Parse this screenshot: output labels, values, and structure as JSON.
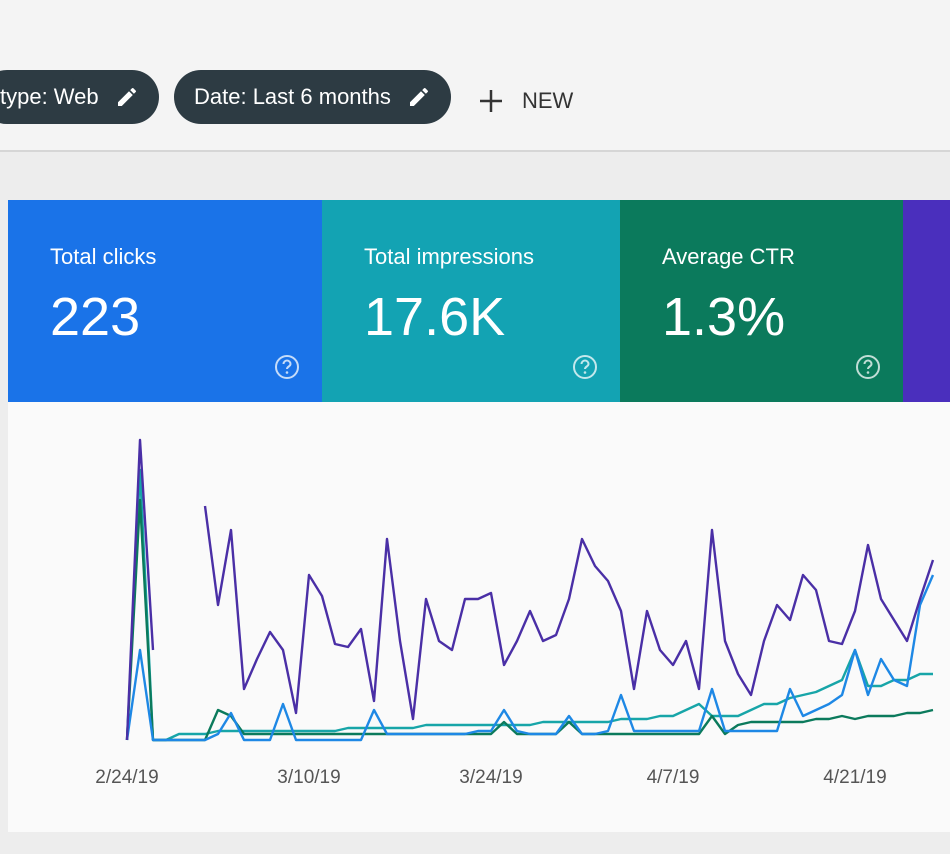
{
  "filters": [
    {
      "label": "type: Web"
    },
    {
      "label": "Date: Last 6 months"
    }
  ],
  "new_button": "NEW",
  "metrics": [
    {
      "label": "Total clicks",
      "value": "223",
      "color": "#1a73e8"
    },
    {
      "label": "Total impressions",
      "value": "17.6K",
      "color": "#13a3b3"
    },
    {
      "label": "Average CTR",
      "value": "1.3%",
      "color": "#0b7a5c"
    }
  ],
  "chart_data": {
    "type": "line",
    "categories": [
      "2/24/19",
      null,
      null,
      null,
      null,
      null,
      null,
      null,
      null,
      null,
      null,
      null,
      null,
      null,
      "3/10/19",
      null,
      null,
      null,
      null,
      null,
      null,
      null,
      null,
      null,
      null,
      null,
      null,
      null,
      "3/24/19",
      null,
      null,
      null,
      null,
      null,
      null,
      null,
      null,
      null,
      null,
      null,
      null,
      null,
      "4/7/19",
      null,
      null,
      null,
      null,
      null,
      null,
      null,
      null,
      null,
      null,
      null,
      null,
      null,
      "4/21/19",
      null,
      null,
      null,
      null,
      null,
      null
    ],
    "ylim": [
      0,
      100
    ],
    "series": [
      {
        "color": "#17a5a8",
        "values": [
          0,
          90,
          0,
          0,
          2,
          2,
          2,
          3,
          3,
          3,
          3,
          3,
          3,
          3,
          3,
          3,
          3,
          4,
          4,
          4,
          4,
          4,
          4,
          5,
          5,
          5,
          5,
          5,
          5,
          5,
          5,
          5,
          6,
          6,
          6,
          6,
          6,
          6,
          7,
          7,
          7,
          8,
          8,
          10,
          12,
          8,
          8,
          8,
          10,
          12,
          12,
          14,
          15,
          16,
          18,
          20,
          30,
          18,
          18,
          20,
          20,
          22,
          22
        ]
      },
      {
        "color": "#0b7a5c",
        "values": [
          0,
          80,
          0,
          0,
          0,
          0,
          0,
          10,
          8,
          2,
          2,
          2,
          2,
          2,
          2,
          2,
          2,
          2,
          2,
          2,
          2,
          2,
          2,
          2,
          2,
          2,
          2,
          2,
          2,
          6,
          2,
          2,
          2,
          2,
          6,
          2,
          2,
          2,
          2,
          2,
          2,
          2,
          2,
          2,
          2,
          8,
          2,
          5,
          6,
          6,
          6,
          6,
          6,
          7,
          7,
          8,
          7,
          8,
          8,
          8,
          9,
          9,
          10
        ]
      },
      {
        "color": "#1e88e5",
        "values": [
          0,
          30,
          0,
          0,
          0,
          0,
          0,
          2,
          9,
          0,
          0,
          0,
          12,
          0,
          0,
          0,
          0,
          0,
          0,
          10,
          2,
          2,
          2,
          2,
          2,
          2,
          2,
          3,
          3,
          10,
          3,
          2,
          2,
          2,
          8,
          2,
          2,
          3,
          15,
          3,
          3,
          3,
          3,
          3,
          3,
          17,
          3,
          3,
          3,
          3,
          3,
          17,
          8,
          10,
          12,
          15,
          30,
          15,
          27,
          20,
          18,
          45,
          55
        ]
      },
      {
        "color": "#4a2fa6",
        "values": [
          0,
          100,
          30,
          null,
          null,
          null,
          78,
          45,
          70,
          17,
          27,
          36,
          30,
          9,
          55,
          48,
          32,
          31,
          37,
          13,
          67,
          33,
          7,
          47,
          33,
          30,
          47,
          47,
          49,
          25,
          33,
          43,
          33,
          35,
          47,
          67,
          58,
          53,
          43,
          17,
          43,
          30,
          25,
          33,
          17,
          70,
          33,
          22,
          15,
          33,
          45,
          40,
          55,
          50,
          33,
          32,
          43,
          65,
          47,
          40,
          33,
          47,
          60
        ]
      }
    ]
  }
}
